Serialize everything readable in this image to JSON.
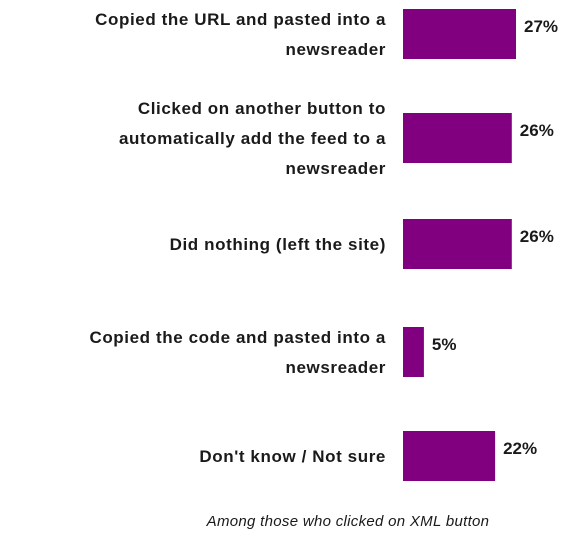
{
  "chart_data": {
    "type": "bar",
    "orientation": "horizontal",
    "categories": [
      [
        "Copied the URL and pasted into a",
        "newsreader"
      ],
      [
        "Clicked on another button to",
        "automatically add the feed to a",
        "newsreader"
      ],
      [
        "Did nothing (left the site)"
      ],
      [
        "Copied the code and pasted into a",
        "newsreader"
      ],
      [
        "Don't know / Not sure"
      ]
    ],
    "values": [
      27,
      26,
      26,
      5,
      22
    ],
    "value_labels": [
      "27%",
      "26%",
      "26%",
      "5%",
      "22%"
    ],
    "xlim": [
      0,
      100
    ],
    "grid": false,
    "bar_color": "#800080",
    "footnote": "Among those who clicked on XML button"
  }
}
